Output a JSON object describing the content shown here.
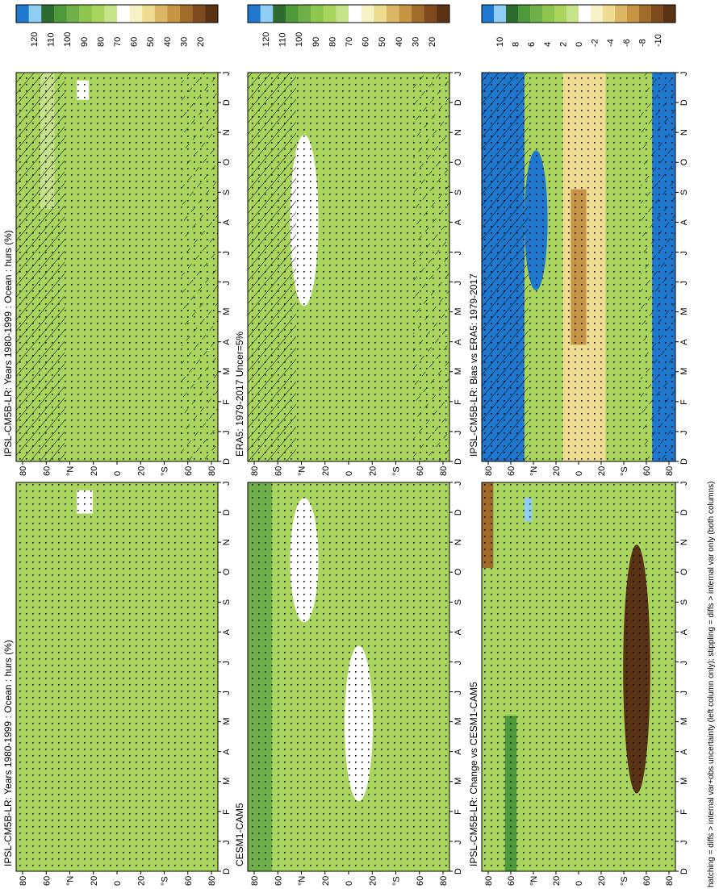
{
  "figure": {
    "footer": "hatching = diffs > internal var+obs uncertainty (left column only); stippling = diffs > internal var only (both columns)"
  },
  "colors": {
    "abs_scale": [
      "#1f78d0",
      "#8ecdf4",
      "#2e6b2e",
      "#4c9a3a",
      "#6fb04a",
      "#8ec650",
      "#a9d55c",
      "#c6e38a",
      "#ffffff",
      "#f7f2c5",
      "#eedc91",
      "#dcb765",
      "#c69443",
      "#a16b2a",
      "#7d4b1e",
      "#5a3214"
    ],
    "diff_scale": [
      "#1f78d0",
      "#8ecdf4",
      "#2e6b2e",
      "#4c9a3a",
      "#6fb04a",
      "#8ec650",
      "#a9d55c",
      "#c6e38a",
      "#ffffff",
      "#f7f2c5",
      "#eedc91",
      "#dcb765",
      "#c69443",
      "#a16b2a",
      "#7d4b1e",
      "#5a3214"
    ],
    "base_green": "#a9d55c"
  },
  "chart_data": [
    {
      "type": "heatmap",
      "title": "IPSL-CM5B-LR: Years 1980-1999 : Ocean : hurs (%)",
      "x_ticks": [
        "D",
        "J",
        "F",
        "M",
        "A",
        "M",
        "J",
        "J",
        "A",
        "S",
        "O",
        "N",
        "D",
        "J"
      ],
      "y_ticks": [
        "80",
        "60",
        "°N",
        "20",
        "0",
        "20",
        "°S",
        "60",
        "80"
      ],
      "colorbar_ticks": [
        "120",
        "110",
        "100",
        "90",
        "80",
        "70",
        "60",
        "50",
        "40",
        "30",
        "20"
      ],
      "hatching": "bands at 60-90N and 60-90S",
      "stippling": true
    },
    {
      "type": "heatmap",
      "title": "IPSL-CM5B-LR: Years 1980-1999 : Ocean : hurs (%)",
      "x_ticks": [
        "D",
        "J",
        "F",
        "M",
        "A",
        "M",
        "J",
        "J",
        "A",
        "S",
        "O",
        "N",
        "D",
        "J"
      ],
      "y_ticks": [
        "80",
        "60",
        "°N",
        "20",
        "0",
        "20",
        "°S",
        "60",
        "80"
      ],
      "colorbar_ticks": [
        "120",
        "110",
        "100",
        "90",
        "80",
        "70",
        "60",
        "50",
        "40",
        "30",
        "20"
      ],
      "stippling": true
    },
    {
      "type": "heatmap",
      "title": "ERA5: 1979-2017 Uncer=5%",
      "x_ticks": [
        "D",
        "J",
        "F",
        "M",
        "A",
        "M",
        "J",
        "J",
        "A",
        "S",
        "O",
        "N",
        "D",
        "J"
      ],
      "y_ticks": [
        "80",
        "60",
        "°N",
        "20",
        "0",
        "20",
        "°S",
        "60",
        "80"
      ],
      "colorbar_ticks": [
        "120",
        "110",
        "100",
        "90",
        "80",
        "70",
        "60",
        "50",
        "40",
        "30",
        "20"
      ],
      "hatching": "northern and southern bands",
      "stippling": true
    },
    {
      "type": "heatmap",
      "title": "CESM1-CAM5",
      "x_ticks": [
        "D",
        "J",
        "F",
        "M",
        "A",
        "M",
        "J",
        "J",
        "A",
        "S",
        "O",
        "N",
        "D",
        "J"
      ],
      "y_ticks": [
        "80",
        "60",
        "°N",
        "20",
        "0",
        "20",
        "°S",
        "60",
        "80"
      ],
      "colorbar_ticks": [
        "120",
        "110",
        "100",
        "90",
        "80",
        "70",
        "60",
        "50",
        "40",
        "30",
        "20"
      ],
      "stippling": true
    },
    {
      "type": "heatmap",
      "title": "IPSL-CM5B-LR: Bias vs ERA5: 1979-2017",
      "x_ticks": [
        "D",
        "J",
        "F",
        "M",
        "A",
        "M",
        "J",
        "J",
        "A",
        "S",
        "O",
        "N",
        "D",
        "J"
      ],
      "y_ticks": [
        "80",
        "60",
        "°N",
        "20",
        "0",
        "20",
        "°S",
        "60",
        "80"
      ],
      "colorbar_ticks": [
        "10",
        "8",
        "6",
        "4",
        "2",
        "0",
        "-2",
        "-4",
        "-6",
        "-8",
        "-10"
      ],
      "hatching": "high-latitude bands",
      "stippling": true
    },
    {
      "type": "heatmap",
      "title": "IPSL-CM5B-LR: Change vs CESM1-CAM5",
      "x_ticks": [
        "D",
        "J",
        "F",
        "M",
        "A",
        "M",
        "J",
        "J",
        "A",
        "S",
        "O",
        "N",
        "D",
        "J"
      ],
      "y_ticks": [
        "80",
        "60",
        "°N",
        "20",
        "0",
        "20",
        "°S",
        "60",
        "80"
      ],
      "colorbar_ticks": [
        "10",
        "8",
        "6",
        "4",
        "2",
        "0",
        "-2",
        "-4",
        "-6",
        "-8",
        "-10"
      ],
      "stippling": true
    }
  ]
}
